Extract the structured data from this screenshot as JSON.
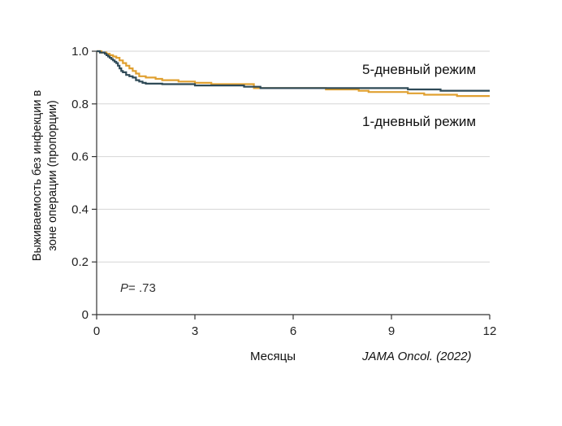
{
  "chart_data": {
    "type": "line",
    "xlabel": "Месяцы",
    "ylabel_lines": [
      "Выживаемость без инфекции в",
      "зоне операции (пропорции)"
    ],
    "xlim": [
      0,
      12
    ],
    "ylim": [
      0,
      1.0
    ],
    "x_ticks": [
      0,
      3,
      6,
      9,
      12
    ],
    "y_ticks": [
      0,
      0.2,
      0.4,
      0.6,
      0.8,
      1.0
    ],
    "y_tick_labels": [
      "0",
      "0.2",
      "0.4",
      "0.6",
      "0.8",
      "1.0"
    ],
    "grid": true,
    "annotation": {
      "p_label": "P",
      "p_value": "= .73"
    },
    "source": "JAMA Oncol. (2022)",
    "series": [
      {
        "name": "5-дневный режим",
        "color": "#2f4a57",
        "step_x": [
          0,
          0.1,
          0.25,
          0.3,
          0.35,
          0.4,
          0.45,
          0.5,
          0.55,
          0.6,
          0.65,
          0.7,
          0.75,
          0.8,
          0.9,
          1.0,
          1.1,
          1.2,
          1.3,
          1.4,
          1.5,
          2.0,
          3.0,
          4.5,
          5.0,
          8.0,
          9.5,
          10.5,
          12.0
        ],
        "step_y": [
          1.0,
          0.995,
          0.99,
          0.985,
          0.98,
          0.975,
          0.97,
          0.965,
          0.96,
          0.955,
          0.945,
          0.935,
          0.925,
          0.92,
          0.91,
          0.905,
          0.9,
          0.89,
          0.885,
          0.88,
          0.877,
          0.875,
          0.87,
          0.865,
          0.86,
          0.86,
          0.855,
          0.85,
          0.85
        ]
      },
      {
        "name": "1-дневный режим",
        "color": "#e0a030",
        "step_x": [
          0,
          0.15,
          0.3,
          0.4,
          0.5,
          0.6,
          0.7,
          0.8,
          0.9,
          1.0,
          1.1,
          1.2,
          1.3,
          1.5,
          1.8,
          2.0,
          2.5,
          3.0,
          3.5,
          4.0,
          4.8,
          5.5,
          7.0,
          8.0,
          8.3,
          9.5,
          10.0,
          11.0,
          12.0
        ],
        "step_y": [
          1.0,
          0.995,
          0.99,
          0.985,
          0.98,
          0.975,
          0.965,
          0.955,
          0.945,
          0.935,
          0.925,
          0.915,
          0.905,
          0.9,
          0.895,
          0.89,
          0.885,
          0.88,
          0.875,
          0.875,
          0.86,
          0.86,
          0.855,
          0.85,
          0.845,
          0.84,
          0.835,
          0.83,
          0.83
        ]
      }
    ]
  }
}
